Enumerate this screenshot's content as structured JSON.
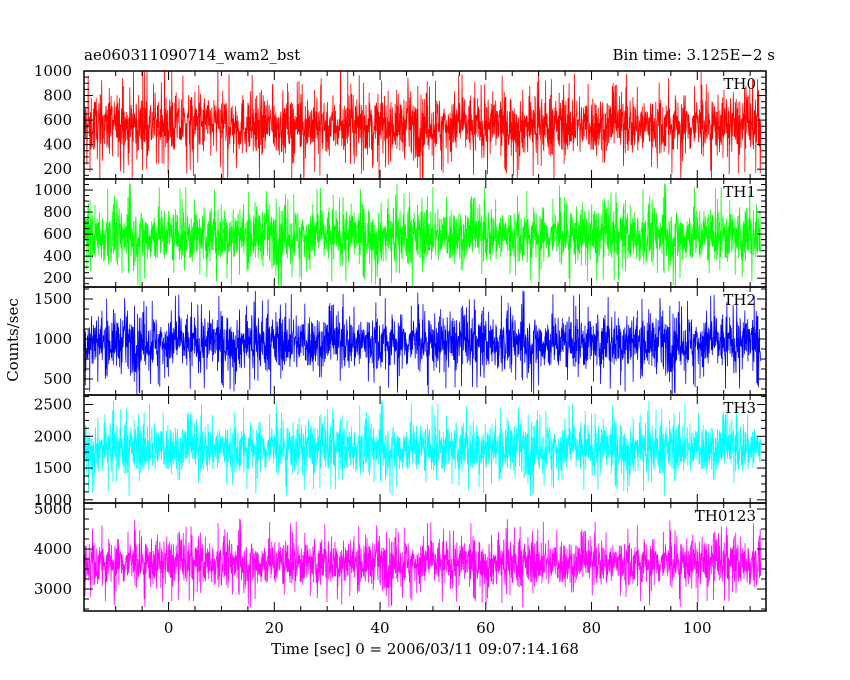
{
  "header": {
    "title": "ae060311090714_wam2_bst",
    "bin_time": "Bin time: 3.125E−2 s"
  },
  "chart_data": {
    "type": "line",
    "xlabel": "Time [sec] 0 = 2006/03/11 09:07:14.168",
    "ylabel": "Counts/sec",
    "xlim": [
      -16,
      113
    ],
    "data_x_range": [
      -16,
      112
    ],
    "x_ticks": [
      0,
      20,
      40,
      60,
      80,
      100
    ],
    "x_tick_labels": [
      "0",
      "20",
      "40",
      "60",
      "80",
      "100"
    ],
    "panels": [
      {
        "name": "TH0",
        "color": "#ff0000",
        "ylim": [
          120,
          1000
        ],
        "y_ticks": [
          200,
          400,
          600,
          800,
          1000
        ],
        "y_tick_labels": [
          "200",
          "400",
          "600",
          "800",
          "1000"
        ],
        "mean": 560,
        "spread": 230
      },
      {
        "name": "TH1",
        "color": "#00ff00",
        "ylim": [
          120,
          1100
        ],
        "y_ticks": [
          200,
          400,
          600,
          800,
          1000
        ],
        "y_tick_labels": [
          "200",
          "400",
          "600",
          "800",
          "1000"
        ],
        "mean": 590,
        "spread": 240
      },
      {
        "name": "TH2",
        "color": "#0000ff",
        "ylim": [
          300,
          1650
        ],
        "y_ticks": [
          500,
          1000,
          1500
        ],
        "y_tick_labels": [
          "500",
          "1000",
          "1500"
        ],
        "mean": 960,
        "spread": 330
      },
      {
        "name": "TH3",
        "color": "#00ffff",
        "ylim": [
          950,
          2650
        ],
        "y_ticks": [
          1000,
          1500,
          2000,
          2500
        ],
        "y_tick_labels": [
          "1000",
          "1500",
          "2000",
          "2500"
        ],
        "mean": 1820,
        "spread": 380
      },
      {
        "name": "TH0123",
        "color": "#ff00ff",
        "ylim": [
          2450,
          5150
        ],
        "y_ticks": [
          3000,
          4000,
          5000
        ],
        "y_tick_labels": [
          "3000",
          "4000",
          "5000"
        ],
        "mean": 3660,
        "spread": 560
      }
    ]
  }
}
